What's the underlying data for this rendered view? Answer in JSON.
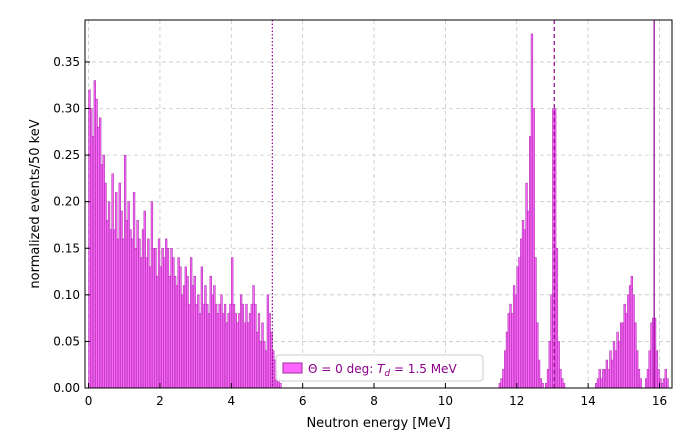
{
  "chart_data": {
    "type": "bar",
    "title": "",
    "xlabel": "Neutron energy [MeV]",
    "ylabel": "normalized events/50 keV",
    "xlim": [
      -0.1,
      16.35
    ],
    "ylim": [
      0,
      0.395
    ],
    "xticks": [
      0,
      2,
      4,
      6,
      8,
      10,
      12,
      14,
      16
    ],
    "yticks": [
      0.0,
      0.05,
      0.1,
      0.15,
      0.2,
      0.25,
      0.3,
      0.35
    ],
    "ytick_labels": [
      "0.00",
      "0.05",
      "0.10",
      "0.15",
      "0.20",
      "0.25",
      "0.30",
      "0.35"
    ],
    "grid": true,
    "legend_position": "bottom-center",
    "fill_color": "#ff66ff",
    "edge_color": "#9a2a9a",
    "marker_color": "#8b008b",
    "series": [
      {
        "name": "Θ = 0 deg: T_d = 1.5 MeV",
        "bin_width_mev": 0.05,
        "bins": [
          [
            0.0,
            0.32
          ],
          [
            0.05,
            0.3
          ],
          [
            0.1,
            0.27
          ],
          [
            0.15,
            0.33
          ],
          [
            0.2,
            0.31
          ],
          [
            0.25,
            0.28
          ],
          [
            0.3,
            0.29
          ],
          [
            0.35,
            0.24
          ],
          [
            0.4,
            0.25
          ],
          [
            0.45,
            0.22
          ],
          [
            0.5,
            0.18
          ],
          [
            0.55,
            0.2
          ],
          [
            0.6,
            0.17
          ],
          [
            0.65,
            0.23
          ],
          [
            0.7,
            0.17
          ],
          [
            0.75,
            0.21
          ],
          [
            0.8,
            0.16
          ],
          [
            0.85,
            0.22
          ],
          [
            0.9,
            0.19
          ],
          [
            0.95,
            0.16
          ],
          [
            1.0,
            0.25
          ],
          [
            1.05,
            0.18
          ],
          [
            1.1,
            0.2
          ],
          [
            1.15,
            0.17
          ],
          [
            1.2,
            0.16
          ],
          [
            1.25,
            0.21
          ],
          [
            1.3,
            0.15
          ],
          [
            1.35,
            0.18
          ],
          [
            1.4,
            0.16
          ],
          [
            1.45,
            0.14
          ],
          [
            1.5,
            0.17
          ],
          [
            1.55,
            0.19
          ],
          [
            1.6,
            0.14
          ],
          [
            1.65,
            0.16
          ],
          [
            1.7,
            0.13
          ],
          [
            1.75,
            0.2
          ],
          [
            1.8,
            0.15
          ],
          [
            1.85,
            0.15
          ],
          [
            1.9,
            0.12
          ],
          [
            1.95,
            0.16
          ],
          [
            2.0,
            0.13
          ],
          [
            2.05,
            0.15
          ],
          [
            2.1,
            0.14
          ],
          [
            2.15,
            0.16
          ],
          [
            2.2,
            0.15
          ],
          [
            2.25,
            0.12
          ],
          [
            2.3,
            0.15
          ],
          [
            2.35,
            0.14
          ],
          [
            2.4,
            0.12
          ],
          [
            2.45,
            0.11
          ],
          [
            2.5,
            0.14
          ],
          [
            2.55,
            0.13
          ],
          [
            2.6,
            0.1
          ],
          [
            2.65,
            0.11
          ],
          [
            2.7,
            0.13
          ],
          [
            2.75,
            0.12
          ],
          [
            2.8,
            0.09
          ],
          [
            2.85,
            0.14
          ],
          [
            2.9,
            0.11
          ],
          [
            2.95,
            0.12
          ],
          [
            3.0,
            0.09
          ],
          [
            3.05,
            0.1
          ],
          [
            3.1,
            0.08
          ],
          [
            3.15,
            0.13
          ],
          [
            3.2,
            0.09
          ],
          [
            3.25,
            0.11
          ],
          [
            3.3,
            0.09
          ],
          [
            3.35,
            0.08
          ],
          [
            3.4,
            0.12
          ],
          [
            3.45,
            0.1
          ],
          [
            3.5,
            0.11
          ],
          [
            3.55,
            0.09
          ],
          [
            3.6,
            0.08
          ],
          [
            3.65,
            0.09
          ],
          [
            3.7,
            0.1
          ],
          [
            3.75,
            0.08
          ],
          [
            3.8,
            0.09
          ],
          [
            3.85,
            0.07
          ],
          [
            3.9,
            0.08
          ],
          [
            3.95,
            0.09
          ],
          [
            4.0,
            0.14
          ],
          [
            4.05,
            0.09
          ],
          [
            4.1,
            0.08
          ],
          [
            4.15,
            0.07
          ],
          [
            4.2,
            0.08
          ],
          [
            4.25,
            0.1
          ],
          [
            4.3,
            0.09
          ],
          [
            4.35,
            0.07
          ],
          [
            4.4,
            0.09
          ],
          [
            4.45,
            0.07
          ],
          [
            4.5,
            0.08
          ],
          [
            4.55,
            0.09
          ],
          [
            4.6,
            0.11
          ],
          [
            4.65,
            0.09
          ],
          [
            4.7,
            0.06
          ],
          [
            4.75,
            0.08
          ],
          [
            4.8,
            0.05
          ],
          [
            4.85,
            0.07
          ],
          [
            4.9,
            0.05
          ],
          [
            4.95,
            0.04
          ],
          [
            5.0,
            0.1
          ],
          [
            5.05,
            0.08
          ],
          [
            5.1,
            0.06
          ],
          [
            5.15,
            0.04
          ],
          [
            5.2,
            0.03
          ],
          [
            5.25,
            0.02
          ],
          [
            5.3,
            0.01
          ],
          [
            5.35,
            0.005
          ],
          [
            11.5,
            0.005
          ],
          [
            11.55,
            0.01
          ],
          [
            11.6,
            0.02
          ],
          [
            11.65,
            0.04
          ],
          [
            11.7,
            0.06
          ],
          [
            11.75,
            0.08
          ],
          [
            11.8,
            0.09
          ],
          [
            11.85,
            0.08
          ],
          [
            11.9,
            0.11
          ],
          [
            11.95,
            0.1
          ],
          [
            12.0,
            0.13
          ],
          [
            12.05,
            0.14
          ],
          [
            12.1,
            0.16
          ],
          [
            12.15,
            0.18
          ],
          [
            12.2,
            0.17
          ],
          [
            12.25,
            0.22
          ],
          [
            12.3,
            0.19
          ],
          [
            12.35,
            0.27
          ],
          [
            12.4,
            0.38
          ],
          [
            12.45,
            0.3
          ],
          [
            12.5,
            0.14
          ],
          [
            12.55,
            0.07
          ],
          [
            12.6,
            0.03
          ],
          [
            12.65,
            0.01
          ],
          [
            12.7,
            0.005
          ],
          [
            12.8,
            0.005
          ],
          [
            12.85,
            0.02
          ],
          [
            12.9,
            0.05
          ],
          [
            12.95,
            0.1
          ],
          [
            13.0,
            0.3
          ],
          [
            13.05,
            0.3
          ],
          [
            13.1,
            0.15
          ],
          [
            13.15,
            0.05
          ],
          [
            13.2,
            0.02
          ],
          [
            13.25,
            0.01
          ],
          [
            13.3,
            0.005
          ],
          [
            14.2,
            0.005
          ],
          [
            14.25,
            0.01
          ],
          [
            14.3,
            0.02
          ],
          [
            14.35,
            0.01
          ],
          [
            14.4,
            0.02
          ],
          [
            14.45,
            0.02
          ],
          [
            14.5,
            0.03
          ],
          [
            14.55,
            0.02
          ],
          [
            14.6,
            0.04
          ],
          [
            14.65,
            0.03
          ],
          [
            14.7,
            0.05
          ],
          [
            14.75,
            0.04
          ],
          [
            14.8,
            0.06
          ],
          [
            14.85,
            0.05
          ],
          [
            14.9,
            0.07
          ],
          [
            14.95,
            0.07
          ],
          [
            15.0,
            0.09
          ],
          [
            15.05,
            0.08
          ],
          [
            15.1,
            0.1
          ],
          [
            15.15,
            0.11
          ],
          [
            15.2,
            0.12
          ],
          [
            15.25,
            0.1
          ],
          [
            15.3,
            0.07
          ],
          [
            15.35,
            0.04
          ],
          [
            15.4,
            0.02
          ],
          [
            15.45,
            0.01
          ],
          [
            15.6,
            0.01
          ],
          [
            15.65,
            0.02
          ],
          [
            15.7,
            0.04
          ],
          [
            15.75,
            0.07
          ],
          [
            15.8,
            0.075
          ],
          [
            15.85,
            0.075
          ],
          [
            15.9,
            0.04
          ],
          [
            15.95,
            0.02
          ],
          [
            16.0,
            0.01
          ],
          [
            16.05,
            0.005
          ],
          [
            16.1,
            0.01
          ],
          [
            16.15,
            0.02
          ],
          [
            16.2,
            0.01
          ]
        ]
      }
    ],
    "vertical_markers": [
      {
        "x": 5.15,
        "style": "dotted"
      },
      {
        "x": 13.05,
        "style": "dashed"
      },
      {
        "x": 15.85,
        "style": "solid"
      }
    ]
  }
}
